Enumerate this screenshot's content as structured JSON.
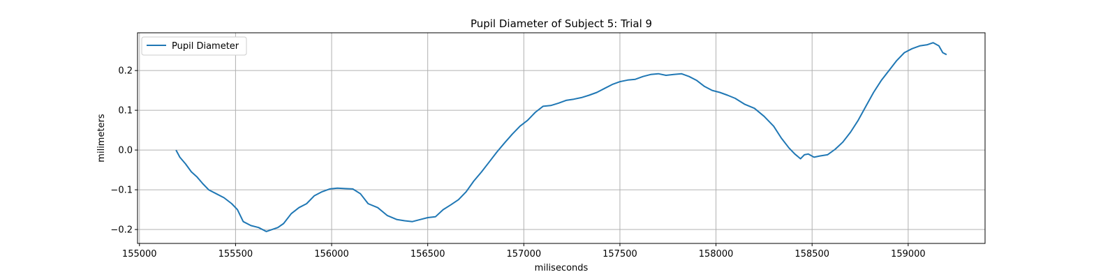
{
  "chart_data": {
    "type": "line",
    "title": "Pupil Diameter of Subject 5: Trial 9",
    "xlabel": "miliseconds",
    "ylabel": "milimeters",
    "xlim": [
      154990,
      159400
    ],
    "ylim": [
      -0.235,
      0.295
    ],
    "xticks": [
      155000,
      155500,
      156000,
      156500,
      157000,
      157500,
      158000,
      158500,
      159000
    ],
    "yticks": [
      -0.2,
      -0.1,
      0.0,
      0.1,
      0.2
    ],
    "ytick_labels": [
      "−0.2",
      "−0.1",
      "0.0",
      "0.1",
      "0.2"
    ],
    "grid": true,
    "legend_position": "upper-left",
    "series": [
      {
        "name": "Pupil Diameter",
        "color": "#1f77b4",
        "x": [
          155190,
          155210,
          155240,
          155270,
          155300,
          155330,
          155360,
          155400,
          155440,
          155480,
          155510,
          155540,
          155580,
          155620,
          155660,
          155690,
          155720,
          155750,
          155790,
          155830,
          155870,
          155910,
          155950,
          155990,
          156030,
          156070,
          156110,
          156150,
          156190,
          156240,
          156290,
          156340,
          156380,
          156420,
          156460,
          156500,
          156540,
          156580,
          156620,
          156660,
          156700,
          156740,
          156780,
          156820,
          156860,
          156900,
          156940,
          156980,
          157020,
          157060,
          157100,
          157140,
          157180,
          157220,
          157260,
          157300,
          157340,
          157380,
          157420,
          157460,
          157500,
          157540,
          157580,
          157620,
          157660,
          157700,
          157740,
          157780,
          157820,
          157860,
          157900,
          157940,
          157980,
          158020,
          158060,
          158100,
          158150,
          158200,
          158250,
          158300,
          158340,
          158380,
          158410,
          158440,
          158460,
          158480,
          158510,
          158540,
          158580,
          158620,
          158660,
          158700,
          158740,
          158780,
          158820,
          158860,
          158900,
          158940,
          158980,
          159020,
          159060,
          159100,
          159130,
          159160,
          159180,
          159200
        ],
        "y": [
          0.0,
          -0.018,
          -0.035,
          -0.055,
          -0.068,
          -0.085,
          -0.1,
          -0.11,
          -0.12,
          -0.135,
          -0.15,
          -0.18,
          -0.19,
          -0.195,
          -0.205,
          -0.2,
          -0.195,
          -0.185,
          -0.16,
          -0.145,
          -0.135,
          -0.115,
          -0.105,
          -0.098,
          -0.096,
          -0.097,
          -0.098,
          -0.11,
          -0.135,
          -0.145,
          -0.165,
          -0.175,
          -0.178,
          -0.18,
          -0.175,
          -0.17,
          -0.168,
          -0.15,
          -0.138,
          -0.125,
          -0.105,
          -0.078,
          -0.055,
          -0.03,
          -0.005,
          0.018,
          0.04,
          0.06,
          0.075,
          0.095,
          0.11,
          0.112,
          0.118,
          0.125,
          0.128,
          0.132,
          0.138,
          0.145,
          0.155,
          0.165,
          0.172,
          0.176,
          0.178,
          0.185,
          0.19,
          0.192,
          0.188,
          0.19,
          0.192,
          0.185,
          0.175,
          0.16,
          0.15,
          0.145,
          0.138,
          0.13,
          0.115,
          0.105,
          0.085,
          0.06,
          0.03,
          0.005,
          -0.01,
          -0.022,
          -0.012,
          -0.01,
          -0.018,
          -0.015,
          -0.012,
          0.002,
          0.02,
          0.045,
          0.075,
          0.11,
          0.145,
          0.175,
          0.2,
          0.225,
          0.245,
          0.255,
          0.262,
          0.265,
          0.27,
          0.262,
          0.245,
          0.24
        ]
      }
    ]
  }
}
